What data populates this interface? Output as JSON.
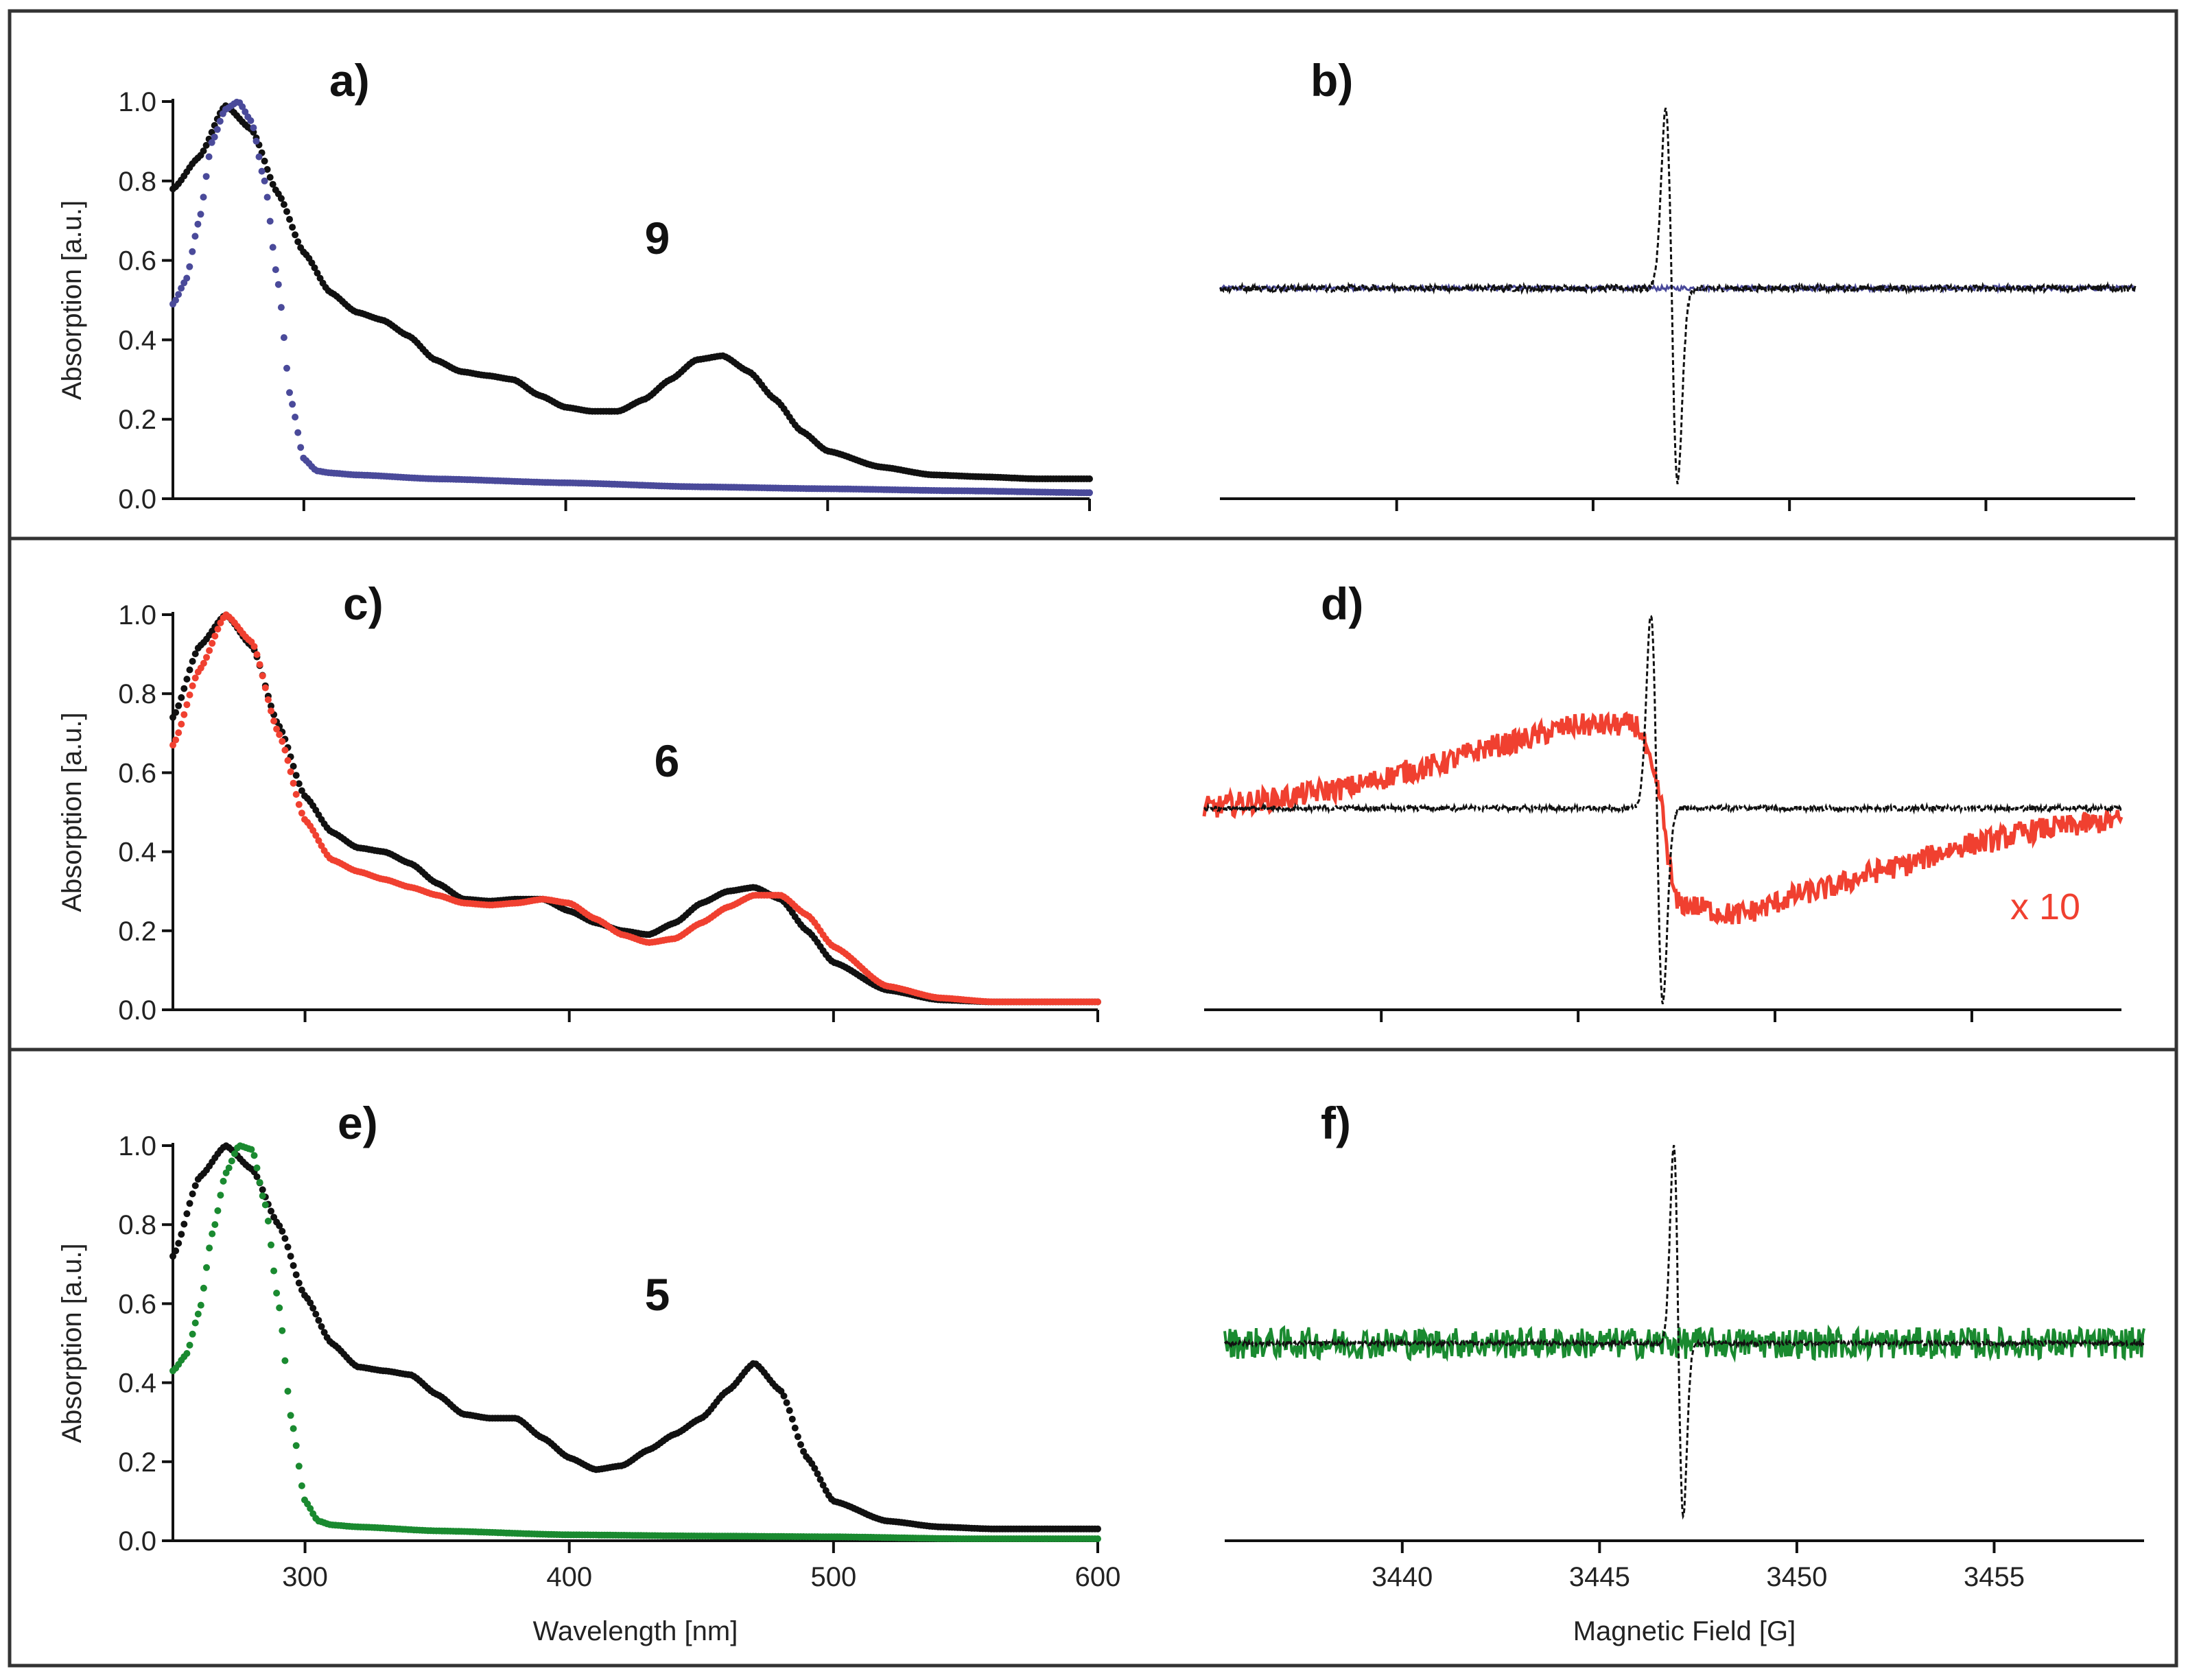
{
  "figure": {
    "border_color": "#333333",
    "colors": {
      "black": "#111111",
      "blue": "#4a4a9a",
      "red": "#f04030",
      "green": "#1a8a30"
    }
  },
  "chart_data": [
    {
      "panel": "a)",
      "type": "scatter",
      "compound_label": "9",
      "xlabel": "",
      "ylabel": "Absorption [a.u.]",
      "xlim": [
        250,
        600
      ],
      "ylim": [
        0.0,
        1.0
      ],
      "xticks": [
        300,
        400,
        500,
        600
      ],
      "yticks": [
        0.0,
        0.2,
        0.4,
        0.6,
        0.8,
        1.0
      ],
      "ytick_labels": [
        "0.0",
        "0.2",
        "0.4",
        "0.6",
        "0.8",
        "1.0"
      ],
      "xtick_labels": [],
      "series": [
        {
          "name": "black",
          "color": "#111111",
          "x": [
            250,
            260,
            270,
            280,
            290,
            300,
            310,
            320,
            330,
            340,
            350,
            360,
            370,
            380,
            390,
            400,
            410,
            420,
            430,
            440,
            450,
            460,
            470,
            480,
            490,
            500,
            520,
            540,
            560,
            580,
            600
          ],
          "y": [
            0.78,
            0.86,
            0.99,
            0.93,
            0.77,
            0.62,
            0.52,
            0.47,
            0.45,
            0.41,
            0.35,
            0.32,
            0.31,
            0.3,
            0.26,
            0.23,
            0.22,
            0.22,
            0.25,
            0.3,
            0.35,
            0.36,
            0.32,
            0.25,
            0.17,
            0.12,
            0.08,
            0.06,
            0.055,
            0.05,
            0.05
          ]
        },
        {
          "name": "blue",
          "color": "#4a4a9a",
          "x": [
            250,
            255,
            260,
            265,
            270,
            275,
            280,
            285,
            290,
            295,
            300,
            305,
            310,
            320,
            350,
            400,
            450,
            500,
            550,
            600
          ],
          "y": [
            0.49,
            0.55,
            0.7,
            0.9,
            0.98,
            1.0,
            0.95,
            0.8,
            0.55,
            0.25,
            0.1,
            0.07,
            0.065,
            0.06,
            0.05,
            0.04,
            0.03,
            0.025,
            0.02,
            0.015
          ]
        }
      ]
    },
    {
      "panel": "b)",
      "type": "line",
      "compound_label": "",
      "xlabel": "",
      "ylabel": "",
      "xlim": [
        3435.5,
        3458.8
      ],
      "ylim": [
        0.0,
        1.0
      ],
      "xticks": [
        3440,
        3445,
        3450,
        3455
      ],
      "xtick_labels": [],
      "yticks": [],
      "ytick_labels": [],
      "series": [
        {
          "name": "blue-noise",
          "color": "#4a4a9a",
          "style": "noise",
          "baseline": 0.53,
          "amplitude": 0.006
        },
        {
          "name": "black-dashed",
          "color": "#111111",
          "style": "derivative",
          "baseline": 0.53,
          "center": 3447.0,
          "peak": 0.98,
          "trough": 0.04,
          "width": 0.15,
          "noise": 0.008
        }
      ]
    },
    {
      "panel": "c)",
      "type": "scatter",
      "compound_label": "6",
      "xlabel": "",
      "ylabel": "Absorption [a.u.]",
      "xlim": [
        250,
        600
      ],
      "ylim": [
        0.0,
        1.0
      ],
      "xticks": [
        300,
        400,
        500,
        600
      ],
      "yticks": [
        0.0,
        0.2,
        0.4,
        0.6,
        0.8,
        1.0
      ],
      "ytick_labels": [
        "0.0",
        "0.2",
        "0.4",
        "0.6",
        "0.8",
        "1.0"
      ],
      "xtick_labels": [],
      "series": [
        {
          "name": "black",
          "color": "#111111",
          "x": [
            250,
            260,
            270,
            280,
            290,
            300,
            310,
            320,
            330,
            340,
            350,
            360,
            370,
            380,
            390,
            400,
            410,
            420,
            430,
            440,
            450,
            460,
            470,
            480,
            490,
            500,
            520,
            540,
            560,
            580,
            600
          ],
          "y": [
            0.74,
            0.92,
            1.0,
            0.92,
            0.72,
            0.54,
            0.45,
            0.41,
            0.4,
            0.37,
            0.32,
            0.28,
            0.275,
            0.28,
            0.28,
            0.25,
            0.22,
            0.2,
            0.19,
            0.22,
            0.27,
            0.3,
            0.31,
            0.28,
            0.2,
            0.12,
            0.05,
            0.025,
            0.02,
            0.02,
            0.02
          ]
        },
        {
          "name": "red",
          "color": "#f04030",
          "x": [
            250,
            260,
            270,
            280,
            290,
            300,
            310,
            320,
            330,
            340,
            350,
            360,
            370,
            380,
            390,
            400,
            410,
            420,
            430,
            440,
            450,
            460,
            470,
            480,
            490,
            500,
            520,
            540,
            560,
            580,
            600
          ],
          "y": [
            0.67,
            0.86,
            1.0,
            0.93,
            0.7,
            0.48,
            0.38,
            0.35,
            0.33,
            0.31,
            0.29,
            0.27,
            0.265,
            0.27,
            0.28,
            0.27,
            0.23,
            0.19,
            0.17,
            0.18,
            0.22,
            0.26,
            0.29,
            0.29,
            0.24,
            0.16,
            0.06,
            0.03,
            0.02,
            0.02,
            0.02
          ]
        }
      ]
    },
    {
      "panel": "d)",
      "type": "line",
      "compound_label": "",
      "annotation": "x 10",
      "xlabel": "",
      "ylabel": "",
      "xlim": [
        3435.5,
        3458.8
      ],
      "ylim": [
        0.0,
        1.0
      ],
      "xticks": [
        3440,
        3445,
        3450,
        3455
      ],
      "xtick_labels": [],
      "yticks": [],
      "ytick_labels": [],
      "series": [
        {
          "name": "red-x10",
          "color": "#f04030",
          "style": "broad",
          "x": [
            3435.5,
            3437,
            3439,
            3441,
            3443,
            3445,
            3446.5,
            3447.0,
            3447.5,
            3449,
            3451,
            3453,
            3455,
            3457,
            3458.8
          ],
          "y": [
            0.51,
            0.53,
            0.56,
            0.61,
            0.67,
            0.72,
            0.72,
            0.57,
            0.27,
            0.24,
            0.3,
            0.36,
            0.42,
            0.46,
            0.48
          ],
          "noise": 0.03
        },
        {
          "name": "black-dashed",
          "color": "#111111",
          "style": "derivative",
          "baseline": 0.51,
          "center": 3447.0,
          "peak": 1.0,
          "trough": 0.02,
          "width": 0.15,
          "noise": 0.006
        }
      ]
    },
    {
      "panel": "e)",
      "type": "scatter",
      "compound_label": "5",
      "xlabel": "Wavelength [nm]",
      "ylabel": "Absorption [a.u.]",
      "xlim": [
        250,
        600
      ],
      "ylim": [
        0.0,
        1.0
      ],
      "xticks": [
        300,
        400,
        500,
        600
      ],
      "yticks": [
        0.0,
        0.2,
        0.4,
        0.6,
        0.8,
        1.0
      ],
      "ytick_labels": [
        "0.0",
        "0.2",
        "0.4",
        "0.6",
        "0.8",
        "1.0"
      ],
      "xtick_labels": [
        "300",
        "400",
        "500",
        "600"
      ],
      "series": [
        {
          "name": "black",
          "color": "#111111",
          "x": [
            250,
            260,
            270,
            280,
            290,
            300,
            310,
            320,
            330,
            340,
            350,
            360,
            370,
            380,
            390,
            400,
            410,
            420,
            430,
            440,
            450,
            460,
            470,
            480,
            490,
            500,
            520,
            540,
            560,
            580,
            600
          ],
          "y": [
            0.72,
            0.92,
            1.0,
            0.94,
            0.8,
            0.62,
            0.5,
            0.44,
            0.43,
            0.42,
            0.37,
            0.32,
            0.31,
            0.31,
            0.26,
            0.21,
            0.18,
            0.19,
            0.23,
            0.27,
            0.31,
            0.38,
            0.45,
            0.38,
            0.21,
            0.1,
            0.05,
            0.035,
            0.03,
            0.03,
            0.03
          ]
        },
        {
          "name": "green",
          "color": "#1a8a30",
          "x": [
            250,
            255,
            260,
            265,
            270,
            275,
            280,
            285,
            290,
            295,
            300,
            305,
            310,
            320,
            350,
            400,
            450,
            500,
            550,
            600
          ],
          "y": [
            0.43,
            0.47,
            0.58,
            0.78,
            0.93,
            1.0,
            0.99,
            0.85,
            0.6,
            0.3,
            0.1,
            0.05,
            0.04,
            0.035,
            0.025,
            0.015,
            0.012,
            0.01,
            0.005,
            0.005
          ]
        }
      ]
    },
    {
      "panel": "f)",
      "type": "line",
      "compound_label": "",
      "xlabel": "Magnetic Field [G]",
      "ylabel": "",
      "xlim": [
        3435.5,
        3458.8
      ],
      "ylim": [
        0.0,
        1.0
      ],
      "xticks": [
        3440,
        3445,
        3450,
        3455
      ],
      "xtick_labels": [
        "3440",
        "3445",
        "3450",
        "3455"
      ],
      "yticks": [],
      "ytick_labels": [],
      "series": [
        {
          "name": "green-noise",
          "color": "#1a8a30",
          "style": "noise",
          "baseline": 0.5,
          "amplitude": 0.04
        },
        {
          "name": "black-dashed",
          "color": "#111111",
          "style": "derivative",
          "baseline": 0.5,
          "center": 3447.0,
          "peak": 1.0,
          "trough": 0.06,
          "width": 0.12,
          "noise": 0.005
        }
      ]
    }
  ]
}
